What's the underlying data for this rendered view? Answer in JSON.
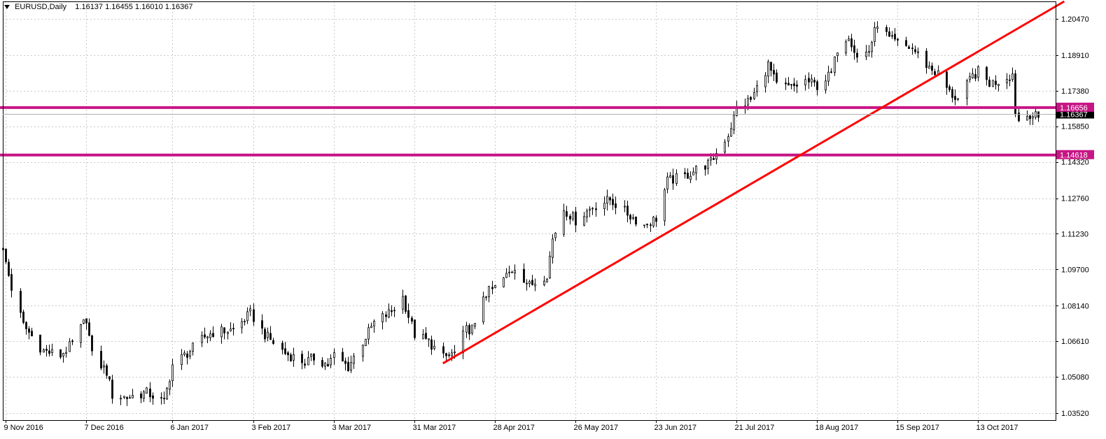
{
  "header": {
    "symbol": "EURUSD,Daily",
    "ohlc": "1.16137 1.16455 1.16010 1.16367"
  },
  "colors": {
    "background": "#ffffff",
    "grid": "#c8c8c8",
    "candle": "#000000",
    "trendline": "#ff0000",
    "level_line": "#c71585",
    "level_label_bg": "#c71585",
    "level_label_text": "#ffffff",
    "current_price_bg": "#000000",
    "current_price_text": "#ffffff"
  },
  "chart_data": {
    "type": "candlestick",
    "title": "EURUSD,Daily",
    "ylim": [
      1.0322,
      1.2122
    ],
    "xlim": [
      "2016-11-08",
      "2017-11-09"
    ],
    "grid": true,
    "yticks": [
      "1.20470",
      "1.18910",
      "1.17380",
      "1.15850",
      "1.14320",
      "1.12760",
      "1.11230",
      "1.09700",
      "1.08140",
      "1.06610",
      "1.05080",
      "1.03520"
    ],
    "xticks": [
      {
        "date": "2016-11-09",
        "label": "9 Nov 2016"
      },
      {
        "date": "2016-12-07",
        "label": "7 Dec 2016"
      },
      {
        "date": "2017-01-06",
        "label": "6 Jan 2017"
      },
      {
        "date": "2017-02-03",
        "label": "3 Feb 2017"
      },
      {
        "date": "2017-03-03",
        "label": "3 Mar 2017"
      },
      {
        "date": "2017-03-31",
        "label": "31 Mar 2017"
      },
      {
        "date": "2017-04-28",
        "label": "28 Apr 2017"
      },
      {
        "date": "2017-05-26",
        "label": "26 May 2017"
      },
      {
        "date": "2017-06-23",
        "label": "23 Jun 2017"
      },
      {
        "date": "2017-07-21",
        "label": "21 Jul 2017"
      },
      {
        "date": "2017-08-18",
        "label": "18 Aug 2017"
      },
      {
        "date": "2017-09-15",
        "label": "15 Sep 2017"
      },
      {
        "date": "2017-10-13",
        "label": "13 Oct 2017"
      }
    ],
    "price_path": [
      [
        "2016-11-08",
        1.105
      ],
      [
        "2016-11-09",
        1.1
      ],
      [
        "2016-11-11",
        1.089
      ],
      [
        "2016-11-15",
        1.073
      ],
      [
        "2016-11-22",
        1.062
      ],
      [
        "2016-11-28",
        1.06
      ],
      [
        "2016-12-02",
        1.065
      ],
      [
        "2016-12-07",
        1.076
      ],
      [
        "2016-12-09",
        1.06
      ],
      [
        "2016-12-14",
        1.053
      ],
      [
        "2016-12-16",
        1.043
      ],
      [
        "2016-12-21",
        1.042
      ],
      [
        "2016-12-28",
        1.044
      ],
      [
        "2017-01-03",
        1.04
      ],
      [
        "2017-01-06",
        1.056
      ],
      [
        "2017-01-12",
        1.062
      ],
      [
        "2017-01-17",
        1.068
      ],
      [
        "2017-01-20",
        1.07
      ],
      [
        "2017-01-27",
        1.071
      ],
      [
        "2017-02-02",
        1.078
      ],
      [
        "2017-02-07",
        1.069
      ],
      [
        "2017-02-14",
        1.061
      ],
      [
        "2017-02-21",
        1.057
      ],
      [
        "2017-02-24",
        1.059
      ],
      [
        "2017-03-01",
        1.056
      ],
      [
        "2017-03-03",
        1.06
      ],
      [
        "2017-03-08",
        1.055
      ],
      [
        "2017-03-13",
        1.066
      ],
      [
        "2017-03-17",
        1.074
      ],
      [
        "2017-03-23",
        1.079
      ],
      [
        "2017-03-27",
        1.085
      ],
      [
        "2017-03-31",
        1.069
      ],
      [
        "2017-04-05",
        1.066
      ],
      [
        "2017-04-10",
        1.059
      ],
      [
        "2017-04-14",
        1.061
      ],
      [
        "2017-04-18",
        1.071
      ],
      [
        "2017-04-21",
        1.072
      ],
      [
        "2017-04-24",
        1.086
      ],
      [
        "2017-04-28",
        1.089
      ],
      [
        "2017-05-05",
        1.098
      ],
      [
        "2017-05-10",
        1.09
      ],
      [
        "2017-05-16",
        1.095
      ],
      [
        "2017-05-18",
        1.11
      ],
      [
        "2017-05-22",
        1.123
      ],
      [
        "2017-05-26",
        1.118
      ],
      [
        "2017-06-01",
        1.124
      ],
      [
        "2017-06-07",
        1.127
      ],
      [
        "2017-06-14",
        1.12
      ],
      [
        "2017-06-19",
        1.116
      ],
      [
        "2017-06-23",
        1.119
      ],
      [
        "2017-06-27",
        1.135
      ],
      [
        "2017-07-03",
        1.137
      ],
      [
        "2017-07-07",
        1.14
      ],
      [
        "2017-07-12",
        1.143
      ],
      [
        "2017-07-14",
        1.147
      ],
      [
        "2017-07-18",
        1.155
      ],
      [
        "2017-07-21",
        1.166
      ],
      [
        "2017-07-26",
        1.17
      ],
      [
        "2017-08-01",
        1.185
      ],
      [
        "2017-08-04",
        1.176
      ],
      [
        "2017-08-09",
        1.175
      ],
      [
        "2017-08-14",
        1.178
      ],
      [
        "2017-08-18",
        1.176
      ],
      [
        "2017-08-23",
        1.181
      ],
      [
        "2017-08-25",
        1.192
      ],
      [
        "2017-08-29",
        1.198
      ],
      [
        "2017-09-01",
        1.188
      ],
      [
        "2017-09-05",
        1.191
      ],
      [
        "2017-09-08",
        1.203
      ],
      [
        "2017-09-12",
        1.196
      ],
      [
        "2017-09-15",
        1.194
      ],
      [
        "2017-09-20",
        1.192
      ],
      [
        "2017-09-25",
        1.185
      ],
      [
        "2017-09-29",
        1.181
      ],
      [
        "2017-10-03",
        1.173
      ],
      [
        "2017-10-06",
        1.17
      ],
      [
        "2017-10-11",
        1.18
      ],
      [
        "2017-10-13",
        1.182
      ],
      [
        "2017-10-17",
        1.177
      ],
      [
        "2017-10-20",
        1.178
      ],
      [
        "2017-10-25",
        1.181
      ],
      [
        "2017-10-26",
        1.165
      ],
      [
        "2017-10-27",
        1.161
      ],
      [
        "2017-10-31",
        1.164
      ],
      [
        "2017-11-03",
        1.162
      ]
    ],
    "annotations": {
      "horizontal_levels": [
        {
          "price": 1.16656,
          "label": "1.16656"
        },
        {
          "price": 1.14618,
          "label": "1.14618"
        }
      ],
      "current_price": {
        "price": 1.16367,
        "label": "1.16367"
      },
      "trendline": {
        "start": [
          "2017-04-10",
          1.0566
        ],
        "end": [
          "2017-11-12",
          1.2122
        ]
      }
    }
  }
}
